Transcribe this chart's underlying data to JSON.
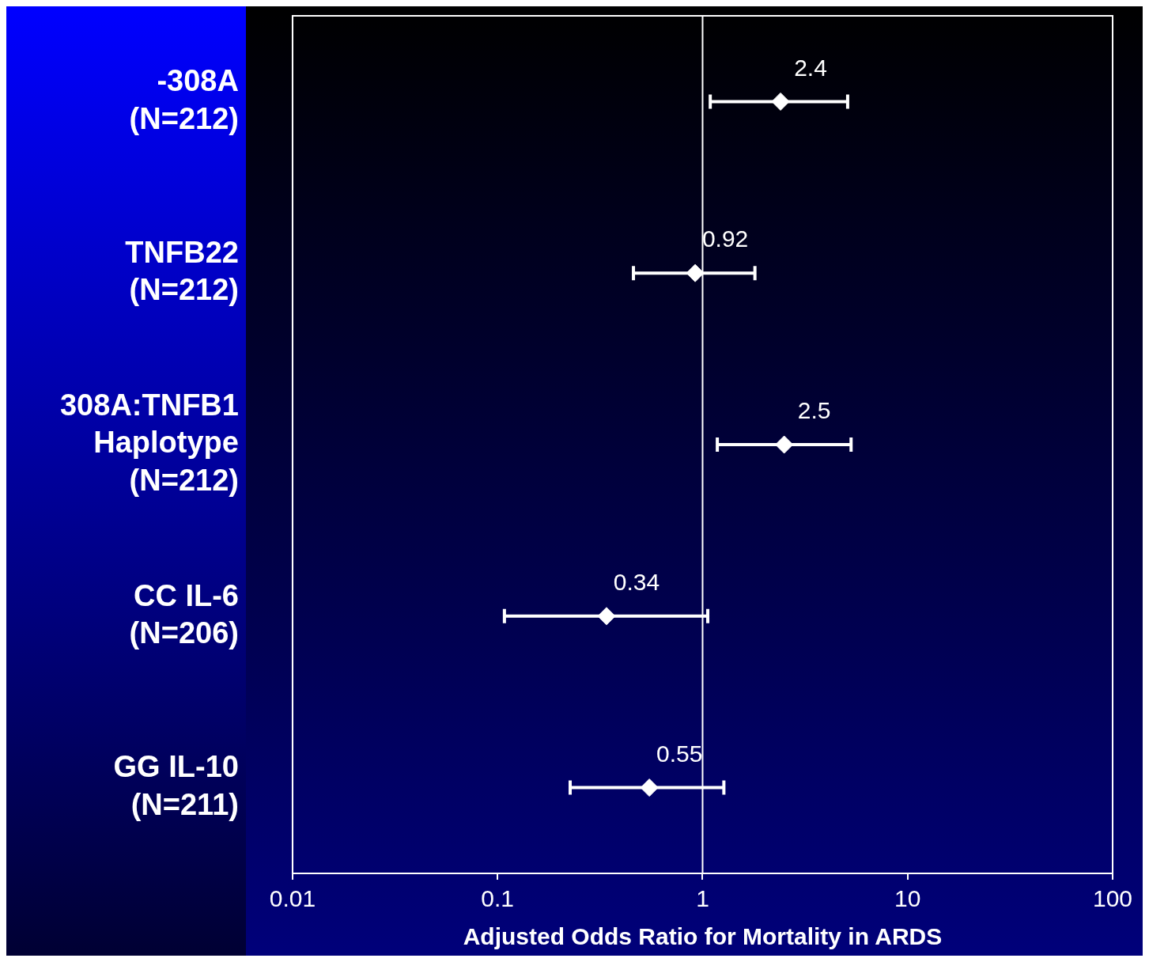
{
  "chart_data": {
    "type": "scatter",
    "orientation": "horizontal",
    "xlabel": "Adjusted Odds Ratio for Mortality in ARDS",
    "categories": [
      "-308A\n(N=212)",
      "TNFB22\n(N=212)",
      "308A:TNFB1\nHaplotype\n(N=212)",
      "CC IL-6\n(N=206)",
      "GG IL-10\n(N=211)"
    ],
    "series": [
      {
        "color": "#ffffff",
        "values": [
          2.4,
          0.92,
          2.5,
          0.34,
          0.55
        ],
        "errors": [
          [
            1.09,
            5.1
          ],
          [
            0.46,
            1.8
          ],
          [
            1.18,
            5.3
          ],
          [
            0.108,
            1.06
          ],
          [
            0.226,
            1.27
          ]
        ]
      }
    ],
    "log": "x",
    "xlim": [
      0.01,
      100
    ],
    "xticks": [
      0.01,
      0.1,
      1,
      10,
      100
    ],
    "ref_lines": [
      {
        "axis": "x",
        "value": 1,
        "color": "#ffffff"
      }
    ],
    "marker": "diamond",
    "data_labels": true,
    "grid": false,
    "legend": false
  }
}
